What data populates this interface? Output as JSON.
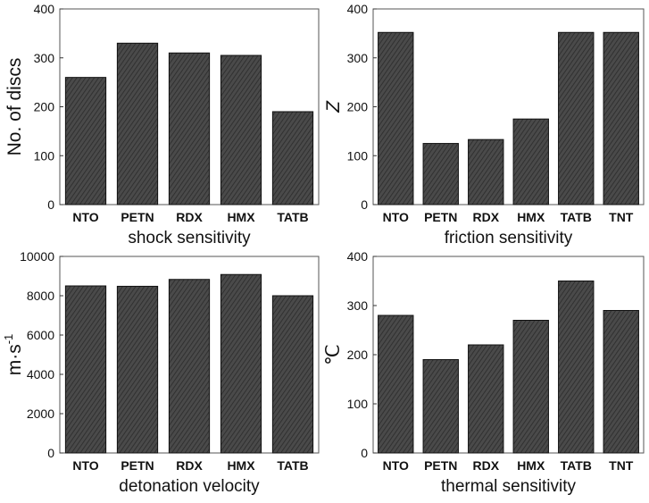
{
  "chart_data": [
    {
      "type": "bar",
      "categories": [
        "NTO",
        "PETN",
        "RDX",
        "HMX",
        "TATB"
      ],
      "values": [
        260,
        330,
        310,
        305,
        190
      ],
      "title": "",
      "xlabel": "shock sensitivity",
      "ylabel": "No. of discs",
      "ylabel_sup": "",
      "ylim": [
        0,
        400
      ],
      "yticks": [
        "0",
        "100",
        "200",
        "300",
        "400"
      ],
      "bar_color": "#4a4a4a"
    },
    {
      "type": "bar",
      "categories": [
        "NTO",
        "PETN",
        "RDX",
        "HMX",
        "TATB",
        "TNT"
      ],
      "values": [
        352,
        125,
        133,
        175,
        352,
        352
      ],
      "title": "",
      "xlabel": "friction sensitivity",
      "ylabel": "Z",
      "ylabel_sup": "",
      "ylim": [
        0,
        400
      ],
      "yticks": [
        "0",
        "100",
        "200",
        "300",
        "400"
      ],
      "bar_color": "#4a4a4a"
    },
    {
      "type": "bar",
      "categories": [
        "NTO",
        "PETN",
        "RDX",
        "HMX",
        "TATB"
      ],
      "values": [
        8500,
        8480,
        8830,
        9080,
        8000
      ],
      "title": "",
      "xlabel": "detonation velocity",
      "ylabel": "m·s",
      "ylabel_sup": "-1",
      "ylim": [
        0,
        10000
      ],
      "yticks": [
        "0",
        "2000",
        "4000",
        "6000",
        "8000",
        "10000"
      ],
      "bar_color": "#4a4a4a"
    },
    {
      "type": "bar",
      "categories": [
        "NTO",
        "PETN",
        "RDX",
        "HMX",
        "TATB",
        "TNT"
      ],
      "values": [
        280,
        190,
        220,
        270,
        350,
        290
      ],
      "title": "",
      "xlabel": "thermal sensitivity",
      "ylabel": "℃",
      "ylabel_sup": "",
      "ylim": [
        0,
        400
      ],
      "yticks": [
        "0",
        "100",
        "200",
        "300",
        "400"
      ],
      "bar_color": "#4a4a4a"
    }
  ]
}
